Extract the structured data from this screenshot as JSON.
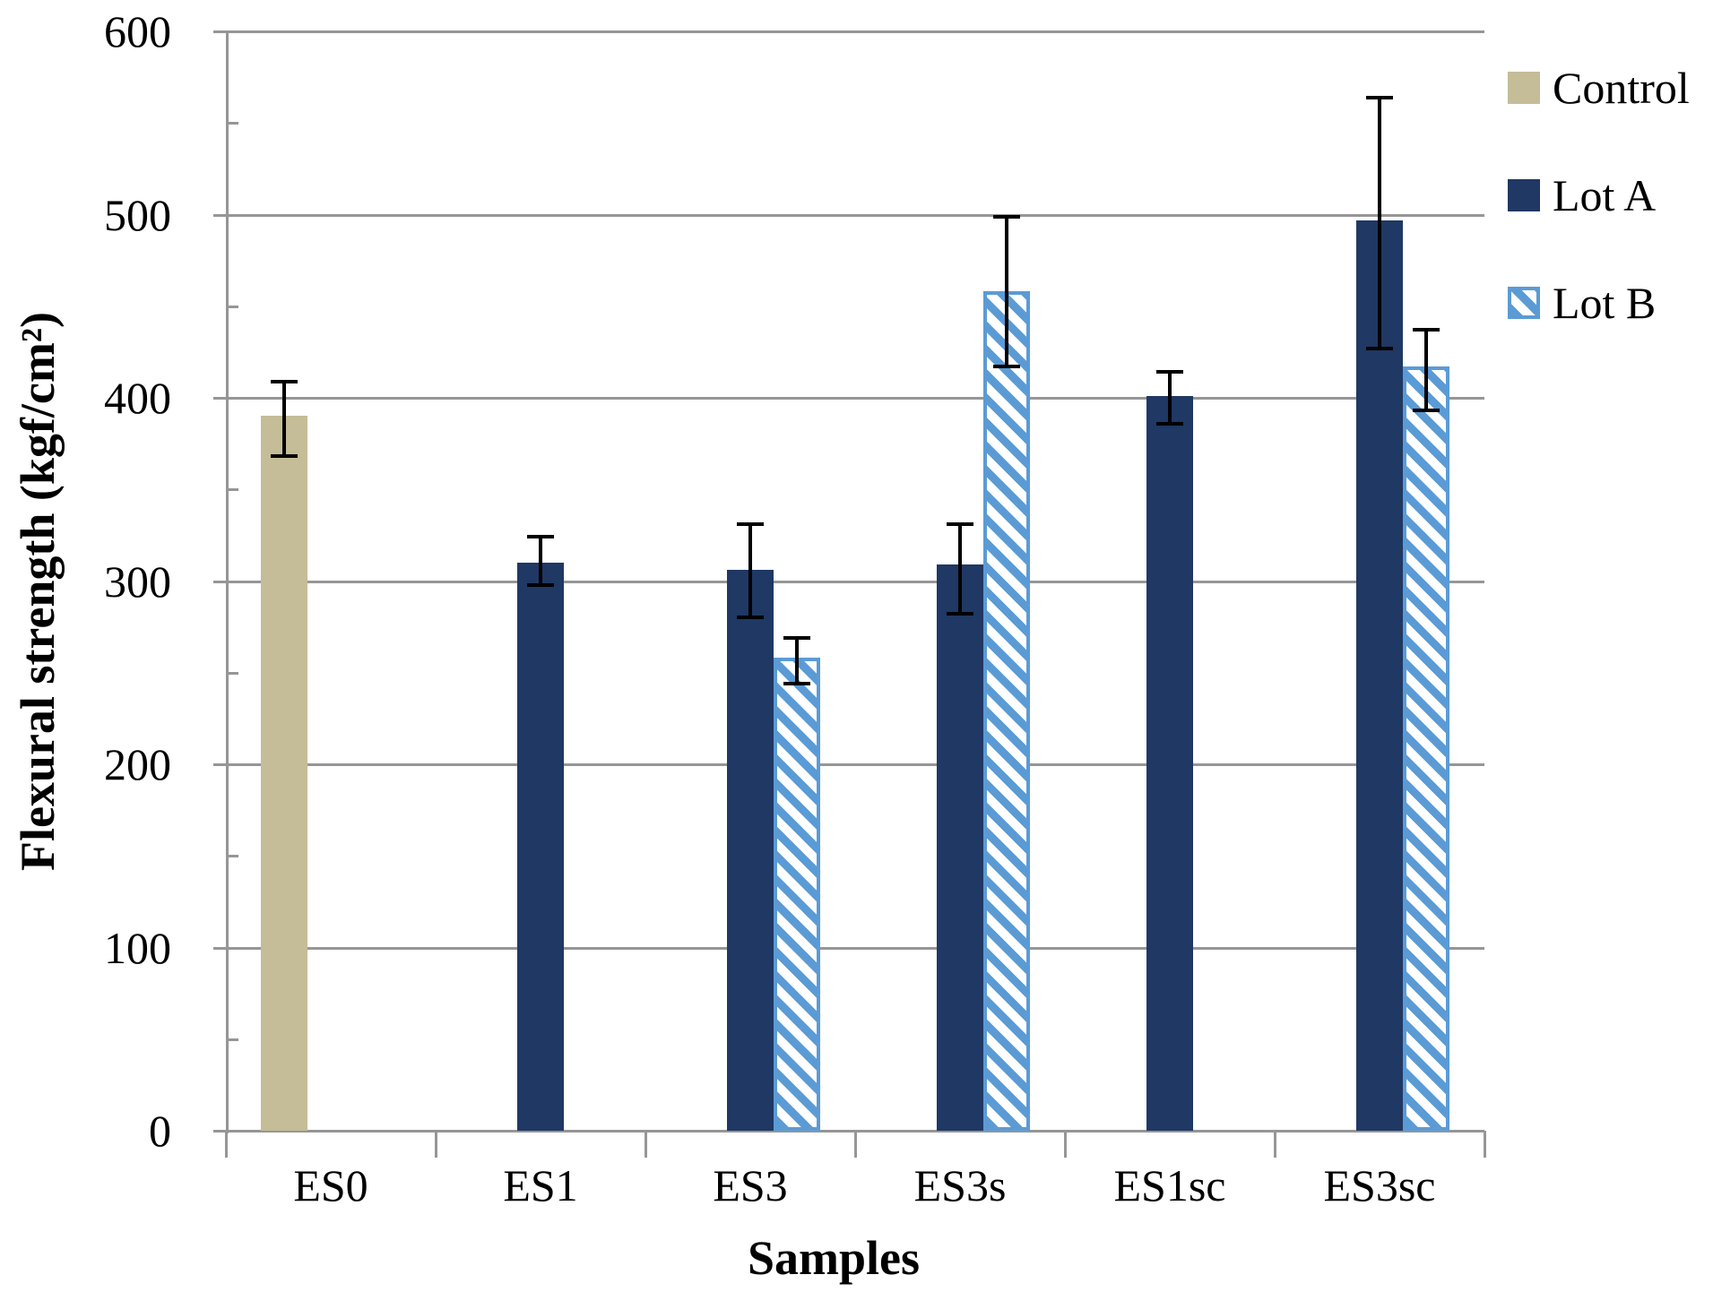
{
  "chart_data": {
    "type": "bar",
    "title": "",
    "xlabel": "Samples",
    "ylabel": "Flexural strength (kgf/cm²)",
    "ylim": [
      0,
      600
    ],
    "y_major_step": 100,
    "y_minor_step": 50,
    "grid": "horizontal-major",
    "legend_position": "right",
    "categories": [
      "ES0",
      "ES1",
      "ES3",
      "ES3s",
      "ES1sc",
      "ES3sc"
    ],
    "series": [
      {
        "name": "Control",
        "color": "#C4BD97",
        "pattern": "solid",
        "values": [
          390,
          null,
          null,
          null,
          null,
          null
        ],
        "error_plus": [
          19,
          null,
          null,
          null,
          null,
          null
        ],
        "error_minus": [
          22,
          null,
          null,
          null,
          null,
          null
        ]
      },
      {
        "name": "Lot A",
        "color": "#1F3864",
        "pattern": "solid",
        "values": [
          null,
          310,
          306,
          309,
          401,
          497
        ],
        "error_plus": [
          null,
          14,
          25,
          22,
          13,
          67
        ],
        "error_minus": [
          null,
          12,
          26,
          27,
          15,
          70
        ]
      },
      {
        "name": "Lot B",
        "color": "#5B9BD5",
        "pattern": "diagonal-hatch",
        "values": [
          null,
          null,
          258,
          458,
          null,
          417
        ],
        "error_plus": [
          null,
          null,
          11,
          41,
          null,
          20
        ],
        "error_minus": [
          null,
          null,
          14,
          41,
          null,
          24
        ]
      }
    ],
    "axis_color": "#969696",
    "gridline_color": "#969696",
    "error_bar_color": "#000000"
  }
}
